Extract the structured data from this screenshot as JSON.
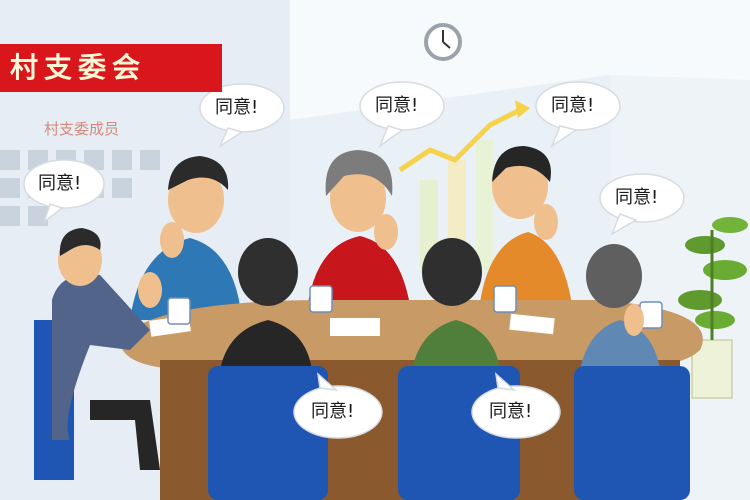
{
  "banner": {
    "title": "村支委会"
  },
  "board": {
    "caption": "村支委成员"
  },
  "bubbles": [
    {
      "text": "同意!"
    },
    {
      "text": "同意!"
    },
    {
      "text": "同意!"
    },
    {
      "text": "同意!"
    },
    {
      "text": "同意!"
    },
    {
      "text": "同意!"
    },
    {
      "text": "同意!"
    }
  ],
  "colors": {
    "banner_red": "#d9161b",
    "wall": "#dbe6f0",
    "table_top": "#c79a66",
    "chair_blue": "#1f56b3"
  }
}
